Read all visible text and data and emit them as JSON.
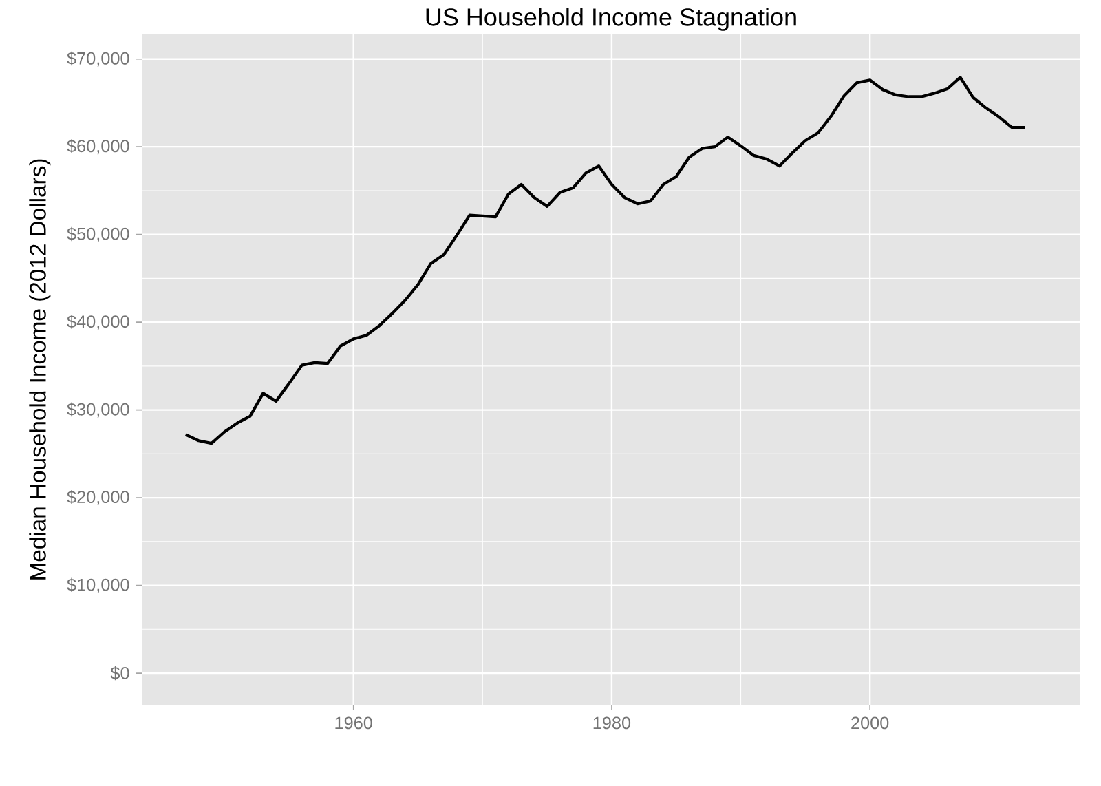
{
  "chart_data": {
    "type": "line",
    "title": "US Household Income Stagnation",
    "ylabel": "Median Household Income (2012 Dollars)",
    "x": [
      1947,
      1948,
      1949,
      1950,
      1951,
      1952,
      1953,
      1954,
      1955,
      1956,
      1957,
      1958,
      1959,
      1960,
      1961,
      1962,
      1963,
      1964,
      1965,
      1966,
      1967,
      1968,
      1969,
      1970,
      1971,
      1972,
      1973,
      1974,
      1975,
      1976,
      1977,
      1978,
      1979,
      1980,
      1981,
      1982,
      1983,
      1984,
      1985,
      1986,
      1987,
      1988,
      1989,
      1990,
      1991,
      1992,
      1993,
      1994,
      1995,
      1996,
      1997,
      1998,
      1999,
      2000,
      2001,
      2002,
      2003,
      2004,
      2005,
      2006,
      2007,
      2008,
      2009,
      2010,
      2011,
      2012
    ],
    "series": [
      {
        "color": "#000000",
        "values": [
          27200,
          26500,
          26200,
          27500,
          28500,
          29300,
          31900,
          31000,
          33000,
          35100,
          35400,
          35300,
          37300,
          38100,
          38500,
          39600,
          41000,
          42500,
          44300,
          46700,
          47700,
          49900,
          52200,
          52100,
          52000,
          54600,
          55700,
          54200,
          53200,
          54800,
          55300,
          57000,
          57800,
          55700,
          54200,
          53500,
          53800,
          55700,
          56600,
          58800,
          59800,
          60000,
          61100,
          60100,
          59000,
          58600,
          57800,
          59300,
          60700,
          61600,
          63500,
          65800,
          67300,
          67600,
          66500,
          65900,
          65700,
          65700,
          66100,
          66600,
          67900,
          65600,
          64400,
          63400,
          62200,
          62200
        ]
      }
    ],
    "xlim": [
      1943.6,
      2016.3
    ],
    "ylim": [
      -3600,
      72800
    ],
    "xticks": [
      1960,
      1980,
      2000
    ],
    "yticks": [
      {
        "value": 0,
        "label": "$0"
      },
      {
        "value": 10000,
        "label": "$10,000"
      },
      {
        "value": 20000,
        "label": "$20,000"
      },
      {
        "value": 30000,
        "label": "$30,000"
      },
      {
        "value": 40000,
        "label": "$40,000"
      },
      {
        "value": 50000,
        "label": "$50,000"
      },
      {
        "value": 60000,
        "label": "$60,000"
      },
      {
        "value": 70000,
        "label": "$70,000"
      }
    ],
    "grid": true,
    "legend": false,
    "marker": "none",
    "line_style": "solid"
  }
}
